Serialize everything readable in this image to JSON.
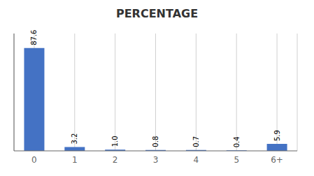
{
  "chart_data": {
    "type": "bar",
    "title": "PERCENTAGE",
    "categories": [
      "0",
      "1",
      "2",
      "3",
      "4",
      "5",
      "6+"
    ],
    "values": [
      87.6,
      3.2,
      1.0,
      0.8,
      0.7,
      0.4,
      5.9
    ],
    "value_labels": [
      "87.6",
      "3.2",
      "1.0",
      "0.8",
      "0.7",
      "0.4",
      "5.9"
    ],
    "data_labels": true,
    "color": "#4472c4",
    "ylim": [
      0,
      100
    ],
    "grid": true,
    "tick_labels": "x"
  }
}
